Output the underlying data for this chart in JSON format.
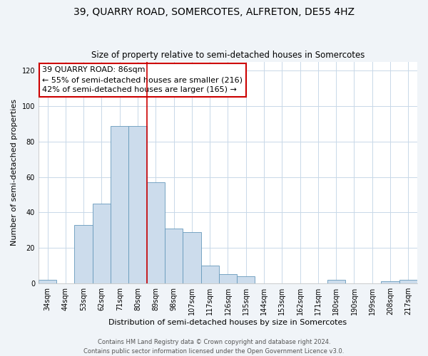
{
  "title": "39, QUARRY ROAD, SOMERCOTES, ALFRETON, DE55 4HZ",
  "subtitle": "Size of property relative to semi-detached houses in Somercotes",
  "categories": [
    "34sqm",
    "44sqm",
    "53sqm",
    "62sqm",
    "71sqm",
    "80sqm",
    "89sqm",
    "98sqm",
    "107sqm",
    "117sqm",
    "126sqm",
    "135sqm",
    "144sqm",
    "153sqm",
    "162sqm",
    "171sqm",
    "180sqm",
    "190sqm",
    "199sqm",
    "208sqm",
    "217sqm"
  ],
  "values": [
    2,
    0,
    33,
    45,
    89,
    89,
    57,
    31,
    29,
    10,
    5,
    4,
    0,
    0,
    0,
    0,
    2,
    0,
    0,
    1,
    2
  ],
  "bar_color": "#ccdcec",
  "bar_edge_color": "#6699bb",
  "highlight_bar_index": 5,
  "highlight_line_color": "#cc0000",
  "annotation_title": "39 QUARRY ROAD: 86sqm",
  "annotation_line1": "← 55% of semi-detached houses are smaller (216)",
  "annotation_line2": "42% of semi-detached houses are larger (165) →",
  "annotation_box_color": "#ffffff",
  "annotation_box_edge": "#cc0000",
  "ylabel": "Number of semi-detached properties",
  "xlabel": "Distribution of semi-detached houses by size in Somercotes",
  "footer1": "Contains HM Land Registry data © Crown copyright and database right 2024.",
  "footer2": "Contains public sector information licensed under the Open Government Licence v3.0.",
  "ylim": [
    0,
    125
  ],
  "yticks": [
    0,
    20,
    40,
    60,
    80,
    100,
    120
  ],
  "background_color": "#f0f4f8",
  "plot_bg_color": "#ffffff",
  "grid_color": "#c8d8e8",
  "title_fontsize": 10,
  "subtitle_fontsize": 8.5,
  "tick_fontsize": 7,
  "label_fontsize": 8,
  "footer_fontsize": 6,
  "annotation_fontsize": 8
}
